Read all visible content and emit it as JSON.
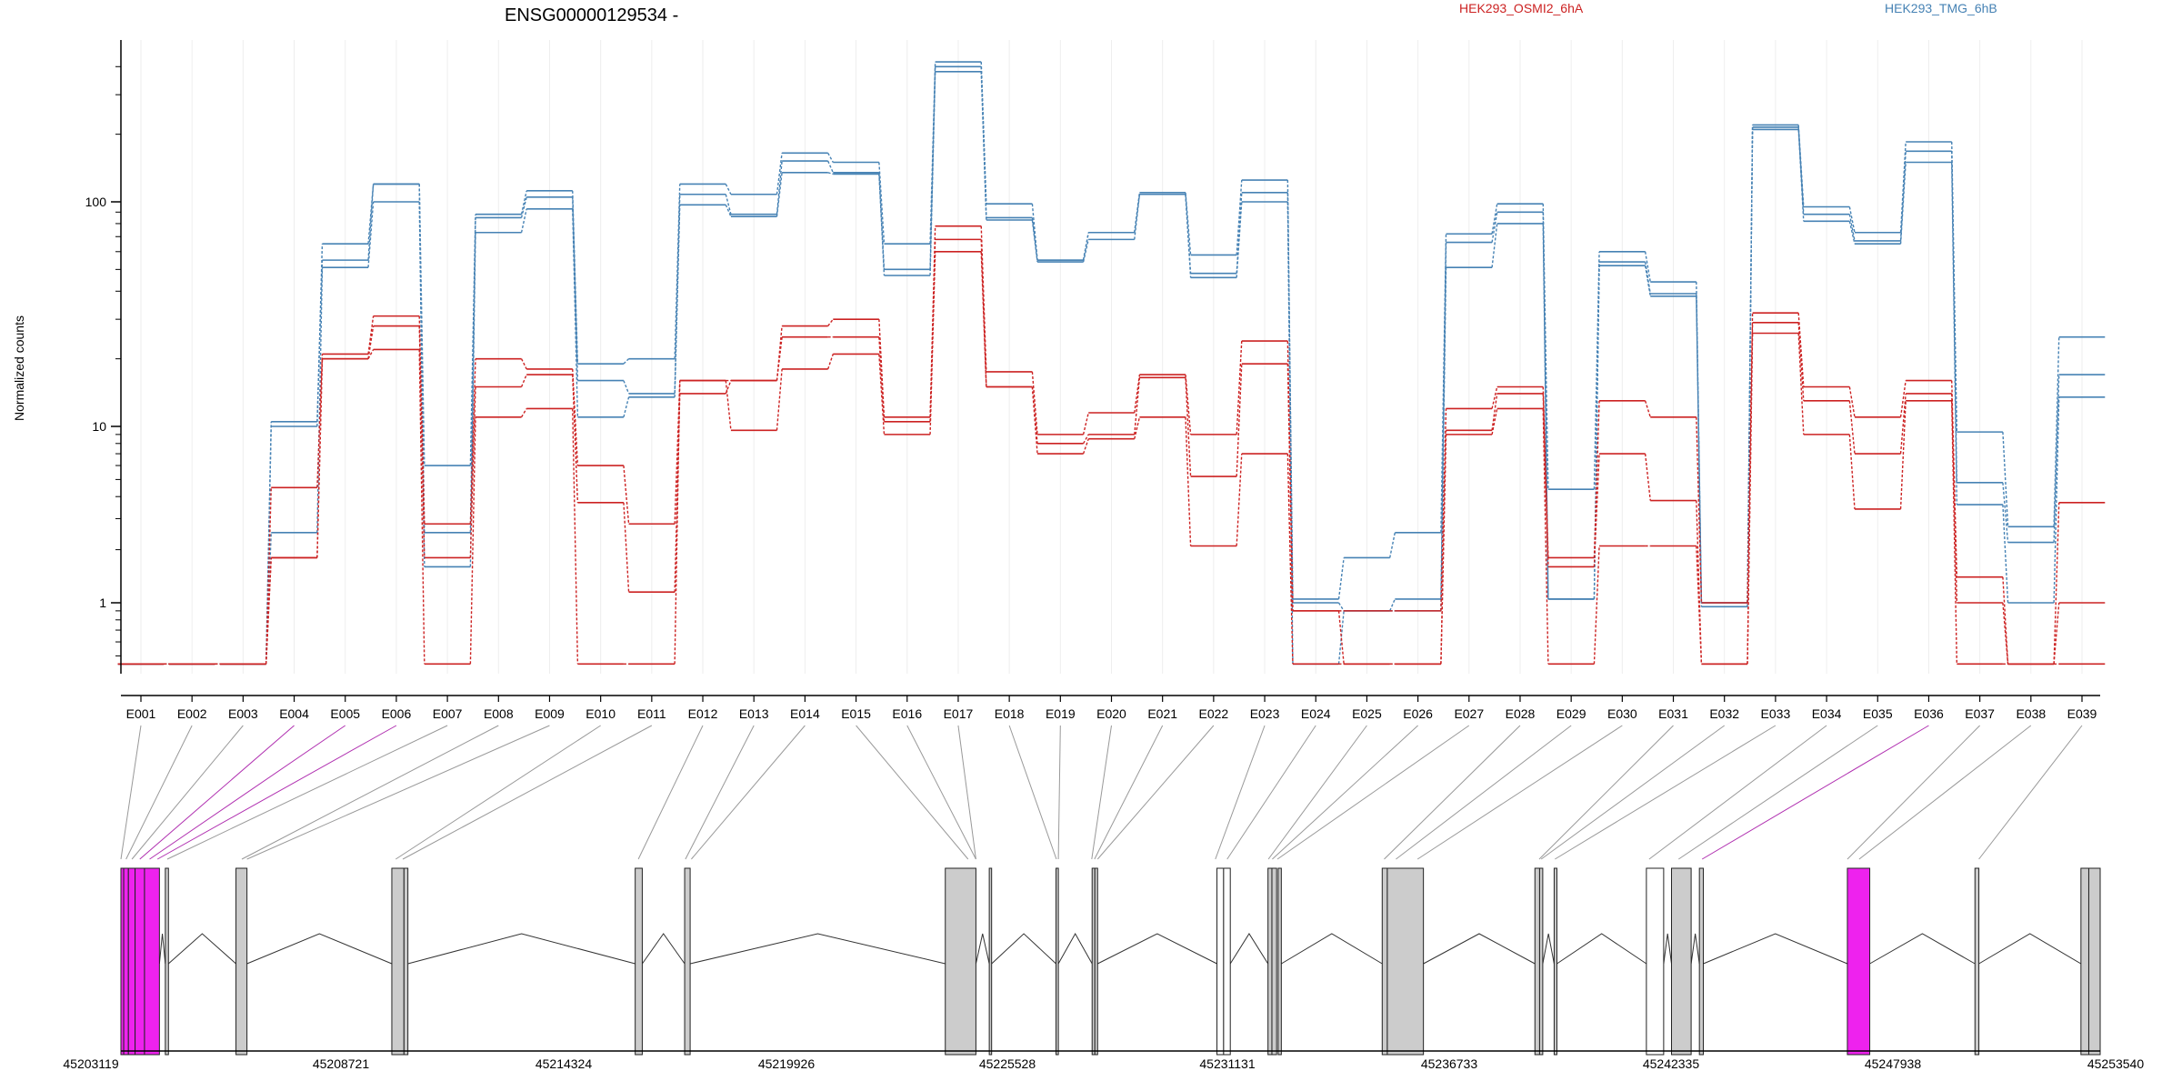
{
  "chart_data": {
    "type": "line",
    "title": "ENSG00000129534 -",
    "ylabel": "Normalized counts",
    "y_scale": "log",
    "y_ticks": [
      1,
      10,
      100
    ],
    "y_tick_labels": [
      "1",
      "10",
      "100"
    ],
    "categories": [
      "E001",
      "E002",
      "E003",
      "E004",
      "E005",
      "E006",
      "E007",
      "E008",
      "E009",
      "E010",
      "E011",
      "E012",
      "E013",
      "E014",
      "E015",
      "E016",
      "E017",
      "E018",
      "E019",
      "E020",
      "E021",
      "E022",
      "E023",
      "E024",
      "E025",
      "E026",
      "E027",
      "E028",
      "E029",
      "E030",
      "E031",
      "E032",
      "E033",
      "E034",
      "E035",
      "E036",
      "E037",
      "E038",
      "E039"
    ],
    "legend": [
      {
        "name": "HEK293_OSMI2_6hA",
        "color": "#cc2222"
      },
      {
        "name": "HEK293_TMG_6hB",
        "color": "#4682b4"
      }
    ],
    "series": [
      {
        "group": "HEK293_TMG_6hB",
        "color": "#4682b4",
        "values": [
          0.45,
          0.45,
          0.45,
          10.5,
          55,
          120,
          6,
          88,
          112,
          19,
          20,
          120,
          108,
          165,
          150,
          65,
          420,
          98,
          55,
          73,
          110,
          58,
          125,
          1.05,
          1.8,
          2.5,
          72,
          98,
          4.4,
          60,
          44,
          1,
          220,
          95,
          73,
          185,
          9.3,
          2.7,
          25
        ]
      },
      {
        "group": "HEK293_TMG_6hB",
        "color": "#4682b4",
        "values": [
          0.45,
          0.45,
          0.45,
          10,
          65,
          120,
          2.5,
          85,
          105,
          16,
          14,
          108,
          88,
          152,
          135,
          50,
          400,
          85,
          55,
          73,
          108,
          48,
          110,
          1,
          0.9,
          1.05,
          66,
          90,
          1.05,
          54,
          39,
          1,
          215,
          88,
          67,
          168,
          4.8,
          2.2,
          17
        ]
      },
      {
        "group": "HEK293_TMG_6hB",
        "color": "#4682b4",
        "values": [
          0.45,
          0.45,
          0.45,
          2.5,
          51,
          100,
          1.6,
          73,
          93,
          11,
          13.5,
          97,
          86,
          135,
          133,
          47,
          380,
          83,
          54,
          68,
          108,
          46,
          100,
          0.45,
          0.9,
          0.9,
          51,
          80,
          1.05,
          52,
          38,
          0.95,
          210,
          82,
          65,
          150,
          3.6,
          1,
          13.5
        ]
      },
      {
        "group": "HEK293_OSMI2_6hA",
        "color": "#cc2222",
        "values": [
          0.45,
          0.45,
          0.45,
          4.5,
          21,
          31,
          2.8,
          20,
          18,
          6,
          2.8,
          16,
          16,
          28,
          30,
          11,
          78,
          17.5,
          9,
          11.5,
          17,
          9,
          24,
          0.9,
          0.9,
          0.9,
          12,
          15,
          1.8,
          13,
          11,
          1,
          32,
          15,
          11,
          16,
          1.4,
          0.45,
          3.7
        ]
      },
      {
        "group": "HEK293_OSMI2_6hA",
        "color": "#cc2222",
        "values": [
          0.45,
          0.45,
          0.45,
          1.8,
          20,
          28,
          1.8,
          15,
          17,
          3.7,
          1.15,
          14,
          16,
          25,
          25,
          10.5,
          68,
          15,
          8,
          9,
          16.5,
          5.2,
          19,
          0.9,
          0.45,
          0.45,
          9.5,
          14,
          1.6,
          7,
          3.8,
          0.45,
          29,
          13,
          7,
          14,
          1,
          0.45,
          1
        ]
      },
      {
        "group": "HEK293_OSMI2_6hA",
        "color": "#cc2222",
        "values": [
          0.45,
          0.45,
          0.45,
          1.8,
          20,
          22,
          0.45,
          11,
          12,
          0.45,
          0.45,
          16,
          9.5,
          18,
          21,
          9,
          60,
          15,
          7,
          8.5,
          11,
          2.1,
          7,
          0.45,
          0.45,
          0.45,
          9,
          12,
          0.45,
          2.1,
          2.1,
          0.45,
          26,
          9,
          3.4,
          13,
          0.45,
          0.45,
          0.45
        ]
      }
    ],
    "gene_axis_ticks": [
      "45203119",
      "45208721",
      "45214324",
      "45219926",
      "45225528",
      "45231131",
      "45236733",
      "45242335",
      "45247938",
      "45253540"
    ],
    "gene_range": [
      45203119,
      45253540
    ],
    "exons": [
      {
        "start": 45203119,
        "end": 45203190,
        "color": "#ee22ee"
      },
      {
        "start": 45203190,
        "end": 45203310,
        "color": "#ee22ee"
      },
      {
        "start": 45203310,
        "end": 45203480,
        "color": "#ee22ee"
      },
      {
        "start": 45203480,
        "end": 45203720,
        "color": "#ee22ee"
      },
      {
        "start": 45203720,
        "end": 45204100,
        "color": "#ee22ee"
      },
      {
        "start": 45204250,
        "end": 45204330,
        "color": "#cccccc"
      },
      {
        "start": 45206050,
        "end": 45206330,
        "color": "#cccccc"
      },
      {
        "start": 45210020,
        "end": 45210330,
        "color": "#cccccc"
      },
      {
        "start": 45210330,
        "end": 45210430,
        "color": "#cccccc"
      },
      {
        "start": 45216220,
        "end": 45216400,
        "color": "#cccccc"
      },
      {
        "start": 45217480,
        "end": 45217620,
        "color": "#cccccc"
      },
      {
        "start": 45224120,
        "end": 45224900,
        "color": "#cccccc"
      },
      {
        "start": 45225240,
        "end": 45225300,
        "color": "#cccccc"
      },
      {
        "start": 45226940,
        "end": 45227000,
        "color": "#cccccc"
      },
      {
        "start": 45227860,
        "end": 45227930,
        "color": "#cccccc"
      },
      {
        "start": 45227930,
        "end": 45228000,
        "color": "#cccccc"
      },
      {
        "start": 45231040,
        "end": 45231210,
        "color": "#ffffff"
      },
      {
        "start": 45231210,
        "end": 45231380,
        "color": "#ffffff"
      },
      {
        "start": 45232340,
        "end": 45232440,
        "color": "#cccccc"
      },
      {
        "start": 45232440,
        "end": 45232560,
        "color": "#cccccc"
      },
      {
        "start": 45232600,
        "end": 45232680,
        "color": "#cccccc"
      },
      {
        "start": 45235250,
        "end": 45235380,
        "color": "#cccccc"
      },
      {
        "start": 45235380,
        "end": 45236300,
        "color": "#cccccc"
      },
      {
        "start": 45239140,
        "end": 45239260,
        "color": "#cccccc"
      },
      {
        "start": 45239260,
        "end": 45239340,
        "color": "#cccccc"
      },
      {
        "start": 45239630,
        "end": 45239700,
        "color": "#cccccc"
      },
      {
        "start": 45241980,
        "end": 45242420,
        "color": "#ffffff"
      },
      {
        "start": 45242620,
        "end": 45243120,
        "color": "#cccccc"
      },
      {
        "start": 45243330,
        "end": 45243430,
        "color": "#cccccc"
      },
      {
        "start": 45247100,
        "end": 45247670,
        "color": "#ee22ee"
      },
      {
        "start": 45250350,
        "end": 45250450,
        "color": "#cccccc"
      },
      {
        "start": 45253050,
        "end": 45253250,
        "color": "#cccccc"
      },
      {
        "start": 45253250,
        "end": 45253540,
        "color": "#cccccc"
      }
    ],
    "exon_link_targets": [
      45203119,
      45203250,
      45203400,
      45203600,
      45203850,
      45204050,
      45204300,
      45206200,
      45206330,
      45210120,
      45210300,
      45216300,
      45217500,
      45217650,
      45224700,
      45224900,
      45224900,
      45226950,
      45227000,
      45227850,
      45227920,
      45228000,
      45231000,
      45231300,
      45232350,
      45232450,
      45232580,
      45235300,
      45235600,
      45236150,
      45239250,
      45239300,
      45239650,
      45242050,
      45242800,
      45243400,
      45247100,
      45247400,
      45250450,
      45253100,
      45253400
    ],
    "link_colors": [
      "gray",
      "gray",
      "gray",
      "magenta",
      "magenta",
      "magenta",
      "gray",
      "gray",
      "gray",
      "gray",
      "gray",
      "gray",
      "gray",
      "gray",
      "gray",
      "gray",
      "gray",
      "gray",
      "gray",
      "gray",
      "gray",
      "gray",
      "gray",
      "gray",
      "gray",
      "gray",
      "gray",
      "gray",
      "gray",
      "gray",
      "gray",
      "gray",
      "gray",
      "gray",
      "gray",
      "magenta",
      "gray",
      "gray",
      "gray"
    ],
    "grid": true
  }
}
